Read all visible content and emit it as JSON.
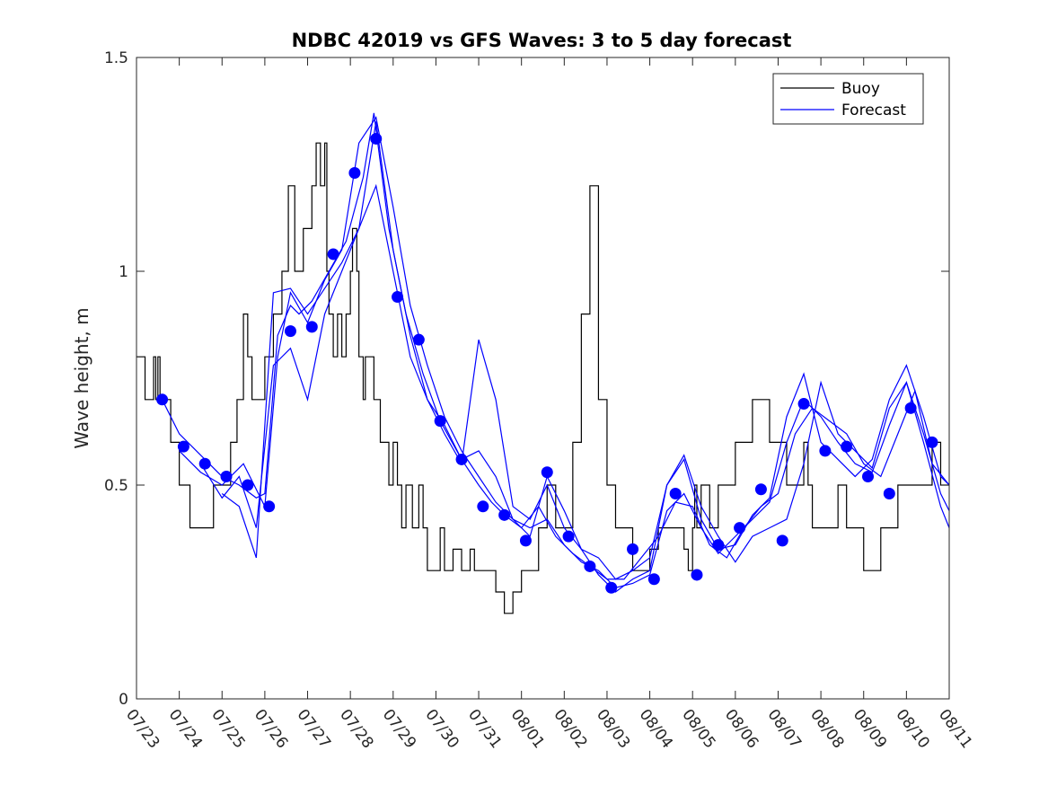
{
  "chart_data": {
    "type": "line",
    "title": "NDBC 42019 vs GFS Waves: 3 to 5 day forecast",
    "xlabel": "",
    "ylabel": "Wave height, m",
    "xlim": [
      "07/23",
      "08/11"
    ],
    "ylim": [
      0,
      1.5
    ],
    "x_tick_labels": [
      "07/23",
      "07/24",
      "07/25",
      "07/26",
      "07/27",
      "07/28",
      "07/29",
      "07/30",
      "07/31",
      "08/01",
      "08/02",
      "08/03",
      "08/04",
      "08/05",
      "08/06",
      "08/07",
      "08/08",
      "08/09",
      "08/10",
      "08/11"
    ],
    "y_ticks": [
      0,
      0.5,
      1,
      1.5
    ],
    "y_tick_labels": [
      "0",
      "0.5",
      "1",
      "1.5"
    ],
    "grid": false,
    "legend": {
      "position": "top-right",
      "entries": [
        "Buoy",
        "Forecast"
      ]
    },
    "colors": {
      "buoy": "#000000",
      "forecast": "#0000ff"
    },
    "buoy_series": {
      "name": "Buoy",
      "x": [
        0,
        0.15,
        0.2,
        0.4,
        0.45,
        0.5,
        0.55,
        0.6,
        0.8,
        1.0,
        1.2,
        1.25,
        1.6,
        1.8,
        2.0,
        2.2,
        2.35,
        2.5,
        2.6,
        2.7,
        3.0,
        3.2,
        3.4,
        3.55,
        3.7,
        3.9,
        4.1,
        4.2,
        4.3,
        4.4,
        4.45,
        4.5,
        4.6,
        4.7,
        4.8,
        4.9,
        5.0,
        5.05,
        5.15,
        5.2,
        5.3,
        5.35,
        5.45,
        5.55,
        5.6,
        5.7,
        5.8,
        5.9,
        6.0,
        6.1,
        6.2,
        6.3,
        6.45,
        6.5,
        6.6,
        6.7,
        6.8,
        7.0,
        7.1,
        7.2,
        7.3,
        7.4,
        7.6,
        7.8,
        7.9,
        8.0,
        8.2,
        8.4,
        8.6,
        8.8,
        9.0,
        9.2,
        9.4,
        9.6,
        9.8,
        10.0,
        10.2,
        10.4,
        10.6,
        10.8,
        11.0,
        11.2,
        11.4,
        11.6,
        11.8,
        12.0,
        12.2,
        12.4,
        12.6,
        12.8,
        12.9,
        12.95,
        13.0,
        13.05,
        13.1,
        13.2,
        13.4,
        13.6,
        13.8,
        14.0,
        14.2,
        14.4,
        14.6,
        14.8,
        15.0,
        15.2,
        15.4,
        15.6,
        15.7,
        15.8,
        16.0,
        16.2,
        16.4,
        16.6,
        16.8,
        17.0,
        17.2,
        17.4,
        17.6,
        17.8,
        18.0,
        18.2,
        18.4,
        18.6,
        18.8,
        19.0
      ],
      "y": [
        0.8,
        0.8,
        0.7,
        0.8,
        0.7,
        0.8,
        0.7,
        0.7,
        0.6,
        0.5,
        0.5,
        0.4,
        0.4,
        0.5,
        0.5,
        0.6,
        0.7,
        0.9,
        0.8,
        0.7,
        0.8,
        0.9,
        1.0,
        1.2,
        1.0,
        1.1,
        1.2,
        1.3,
        1.2,
        1.3,
        1.0,
        0.9,
        0.8,
        0.9,
        0.8,
        0.9,
        1.0,
        1.1,
        1.0,
        0.8,
        0.7,
        0.8,
        0.8,
        0.7,
        0.7,
        0.6,
        0.6,
        0.5,
        0.6,
        0.5,
        0.4,
        0.5,
        0.4,
        0.4,
        0.5,
        0.4,
        0.3,
        0.3,
        0.4,
        0.3,
        0.3,
        0.35,
        0.3,
        0.35,
        0.3,
        0.3,
        0.3,
        0.25,
        0.2,
        0.25,
        0.3,
        0.3,
        0.4,
        0.5,
        0.4,
        0.4,
        0.6,
        0.9,
        1.2,
        0.7,
        0.5,
        0.4,
        0.4,
        0.3,
        0.3,
        0.35,
        0.4,
        0.4,
        0.4,
        0.35,
        0.3,
        0.3,
        0.4,
        0.5,
        0.4,
        0.5,
        0.4,
        0.5,
        0.5,
        0.6,
        0.6,
        0.7,
        0.7,
        0.6,
        0.6,
        0.5,
        0.5,
        0.6,
        0.5,
        0.4,
        0.4,
        0.4,
        0.5,
        0.4,
        0.4,
        0.3,
        0.3,
        0.4,
        0.4,
        0.5,
        0.5,
        0.5,
        0.5,
        0.6,
        0.5,
        0.5
      ]
    },
    "forecast_markers": {
      "name": "Forecast",
      "x": [
        0.6,
        1.1,
        1.6,
        2.1,
        2.6,
        3.1,
        3.6,
        4.1,
        4.6,
        5.1,
        5.6,
        6.1,
        6.6,
        7.1,
        7.6,
        8.1,
        8.6,
        9.1,
        9.6,
        10.1,
        10.6,
        11.1,
        11.6,
        12.1,
        12.6,
        13.1,
        13.6,
        14.1,
        14.6,
        15.1,
        15.6,
        16.1,
        16.6,
        17.1,
        17.6,
        18.1,
        18.6
      ],
      "y": [
        0.7,
        0.59,
        0.55,
        0.52,
        0.5,
        0.45,
        0.86,
        0.87,
        1.04,
        1.23,
        1.31,
        0.94,
        0.84,
        0.65,
        0.56,
        0.45,
        0.43,
        0.37,
        0.53,
        0.38,
        0.31,
        0.26,
        0.35,
        0.28,
        0.48,
        0.29,
        0.36,
        0.4,
        0.49,
        0.37,
        0.69,
        0.58,
        0.59,
        0.52,
        0.48,
        0.68,
        0.6
      ]
    },
    "forecast_series": [
      {
        "x": [
          0.6,
          1.0,
          1.5,
          2.0,
          2.4,
          2.8,
          3.0,
          3.3,
          3.6,
          3.8,
          4.1,
          4.5,
          4.9,
          5.3,
          5.55,
          5.9,
          6.3,
          6.7,
          7.1,
          7.6,
          8.0,
          8.3,
          8.6,
          9.0,
          9.4,
          9.8,
          10.2,
          10.6,
          11.0,
          11.4,
          11.8,
          12.2,
          12.6,
          13.0,
          13.4,
          13.8,
          14.2,
          14.6,
          15.0,
          15.4,
          15.8,
          16.2,
          16.6,
          17.0,
          17.4,
          17.8,
          18.2,
          18.6,
          19.0
        ],
        "y": [
          0.7,
          0.62,
          0.57,
          0.52,
          0.5,
          0.47,
          0.48,
          0.85,
          0.92,
          0.9,
          0.93,
          1.0,
          1.07,
          1.22,
          1.37,
          1.1,
          0.9,
          0.76,
          0.65,
          0.56,
          0.5,
          0.46,
          0.43,
          0.4,
          0.45,
          0.38,
          0.34,
          0.31,
          0.28,
          0.28,
          0.33,
          0.38,
          0.46,
          0.45,
          0.36,
          0.33,
          0.4,
          0.45,
          0.48,
          0.62,
          0.68,
          0.65,
          0.62,
          0.55,
          0.52,
          0.62,
          0.72,
          0.55,
          0.5
        ]
      },
      {
        "x": [
          1.0,
          1.5,
          2.0,
          2.5,
          3.0,
          3.3,
          3.6,
          4.0,
          4.4,
          4.8,
          5.2,
          5.6,
          6.0,
          6.4,
          6.8,
          7.2,
          7.6,
          8.0,
          8.4,
          8.8,
          9.2,
          9.6,
          10.0,
          10.4,
          10.8,
          11.2,
          11.6,
          12.0,
          12.4,
          12.8,
          13.2,
          13.6,
          14.0,
          14.4,
          14.8,
          15.2,
          15.6,
          16.0,
          16.4,
          16.8,
          17.2,
          17.6,
          18.0,
          18.4,
          18.8,
          19.0
        ],
        "y": [
          0.58,
          0.53,
          0.5,
          0.55,
          0.45,
          0.8,
          0.95,
          0.88,
          0.98,
          1.05,
          1.3,
          1.36,
          1.15,
          0.92,
          0.78,
          0.66,
          0.58,
          0.52,
          0.46,
          0.42,
          0.4,
          0.42,
          0.36,
          0.32,
          0.3,
          0.26,
          0.27,
          0.29,
          0.44,
          0.48,
          0.4,
          0.34,
          0.38,
          0.42,
          0.46,
          0.6,
          0.7,
          0.66,
          0.6,
          0.55,
          0.53,
          0.64,
          0.74,
          0.62,
          0.48,
          0.44
        ]
      },
      {
        "x": [
          1.5,
          2.0,
          2.4,
          2.8,
          3.2,
          3.6,
          4.0,
          4.4,
          4.8,
          5.2,
          5.6,
          6.0,
          6.4,
          6.8,
          7.2,
          7.6,
          8.0,
          8.4,
          8.8,
          9.2,
          9.6,
          10.0,
          10.4,
          10.8,
          11.2,
          11.6,
          12.0,
          12.4,
          12.8,
          13.2,
          13.6,
          14.0,
          14.4,
          14.8,
          15.2,
          15.6,
          16.0,
          16.4,
          16.8,
          17.2,
          17.6,
          18.0,
          18.4,
          18.8,
          19.0
        ],
        "y": [
          0.55,
          0.47,
          0.52,
          0.4,
          0.78,
          0.82,
          0.7,
          0.9,
          1.0,
          1.1,
          1.2,
          1.0,
          0.8,
          0.7,
          0.62,
          0.55,
          0.84,
          0.7,
          0.45,
          0.42,
          0.5,
          0.4,
          0.35,
          0.33,
          0.28,
          0.3,
          0.33,
          0.5,
          0.57,
          0.45,
          0.38,
          0.32,
          0.38,
          0.4,
          0.42,
          0.55,
          0.74,
          0.62,
          0.58,
          0.54,
          0.68,
          0.74,
          0.6,
          0.45,
          0.4
        ]
      },
      {
        "x": [
          2.0,
          2.4,
          2.8,
          3.2,
          3.6,
          4.0,
          4.4,
          4.8,
          5.2,
          5.6,
          6.0,
          6.4,
          6.8,
          7.2,
          7.6,
          8.0,
          8.4,
          8.8,
          9.2,
          9.6,
          10.0,
          10.4,
          10.8,
          11.2,
          11.6,
          12.0,
          12.4,
          12.8,
          13.2,
          13.6,
          14.0,
          14.4,
          14.8,
          15.2,
          15.6,
          16.0,
          16.4,
          16.8,
          17.2,
          17.6,
          18.0,
          18.4,
          18.8,
          19.0
        ],
        "y": [
          0.48,
          0.45,
          0.33,
          0.95,
          0.96,
          0.9,
          0.96,
          1.02,
          1.1,
          1.35,
          1.05,
          0.85,
          0.7,
          0.64,
          0.56,
          0.58,
          0.52,
          0.42,
          0.38,
          0.52,
          0.44,
          0.35,
          0.29,
          0.25,
          0.28,
          0.3,
          0.5,
          0.56,
          0.42,
          0.35,
          0.36,
          0.43,
          0.47,
          0.66,
          0.76,
          0.6,
          0.56,
          0.52,
          0.56,
          0.7,
          0.78,
          0.66,
          0.52,
          0.5
        ]
      }
    ]
  }
}
